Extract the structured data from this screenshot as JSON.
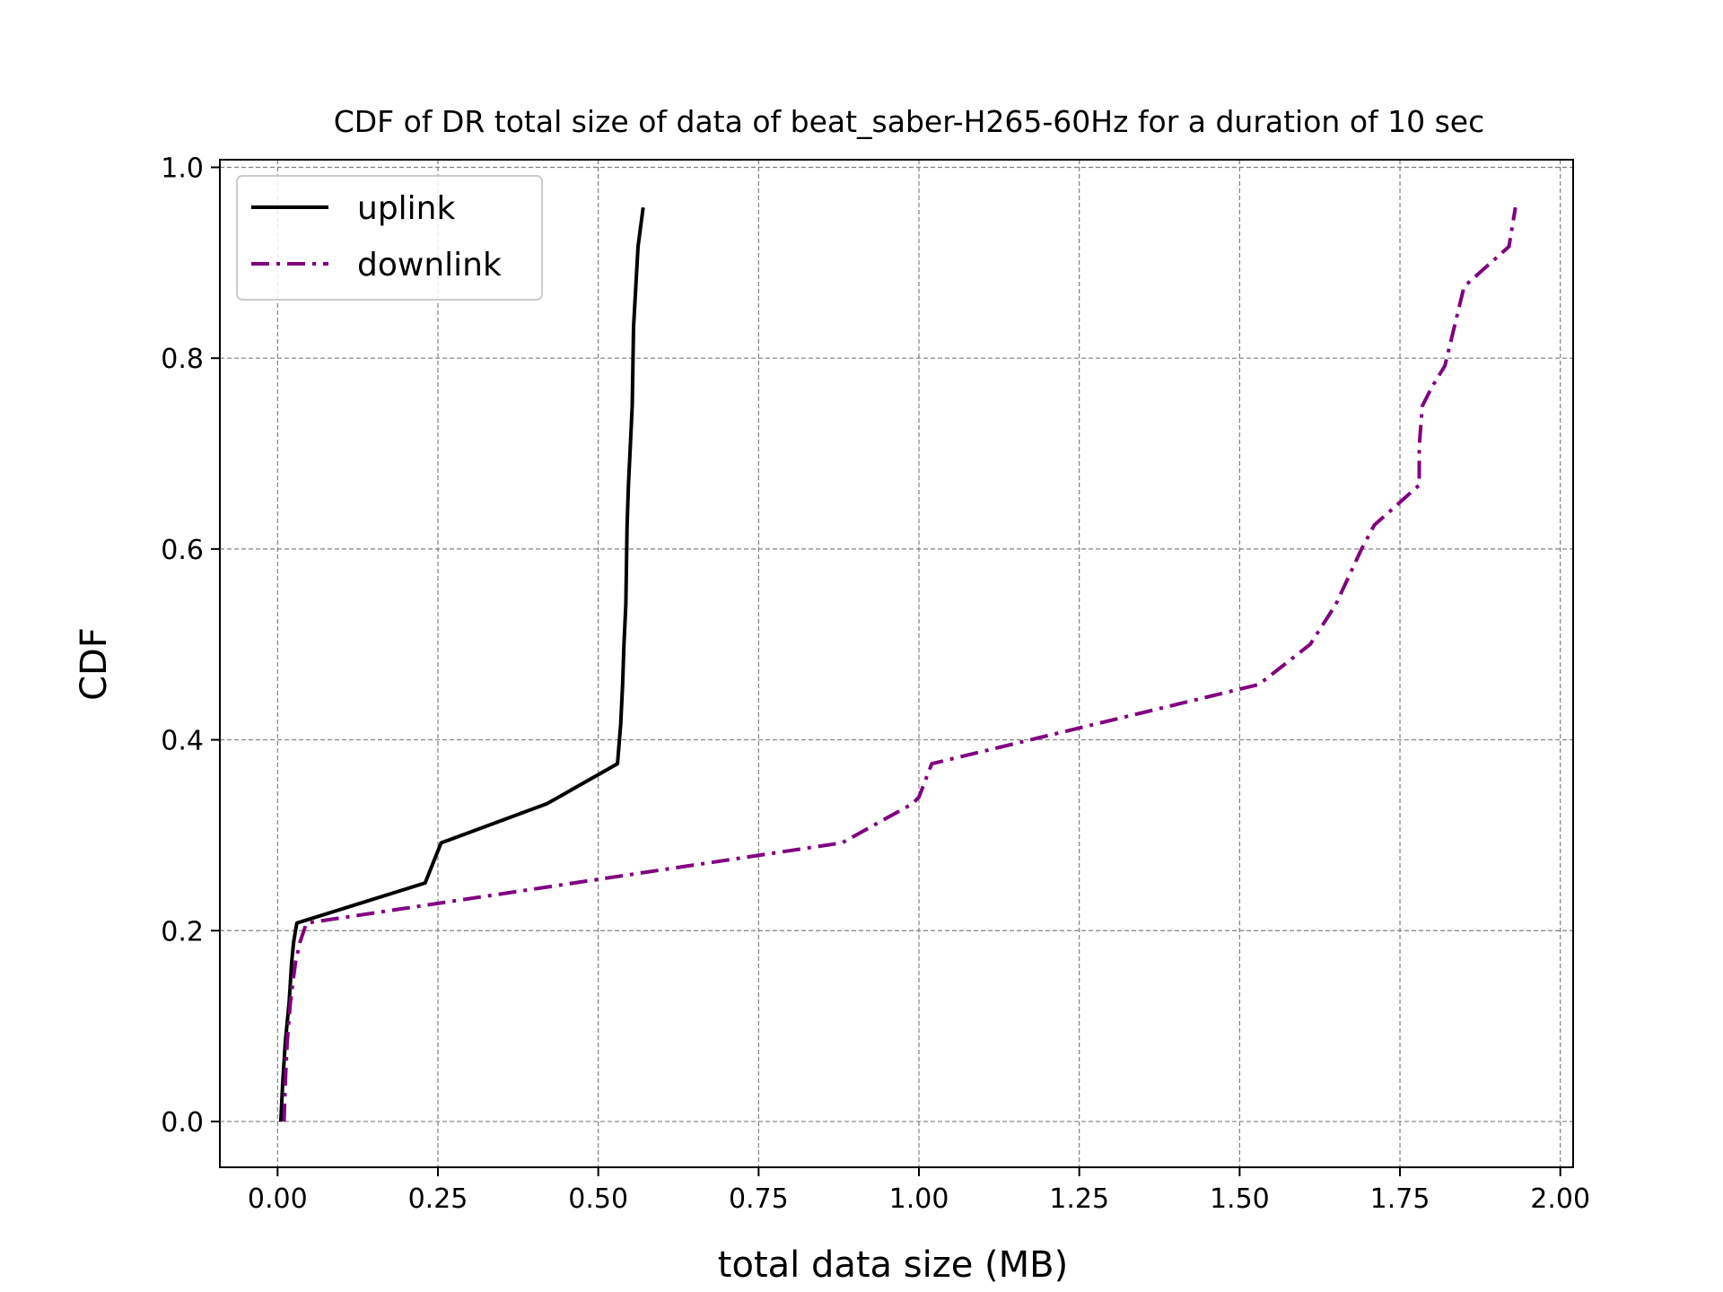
{
  "chart_data": {
    "type": "line",
    "title": "CDF of DR total size of data of beat_saber-H265-60Hz for a duration of 10 sec",
    "xlabel": "total data size (MB)",
    "ylabel": "CDF",
    "xlim": [
      -0.09,
      2.02
    ],
    "ylim": [
      -0.048,
      1.008
    ],
    "xticks": [
      0.0,
      0.25,
      0.5,
      0.75,
      1.0,
      1.25,
      1.5,
      1.75,
      2.0
    ],
    "xtick_labels": [
      "0.00",
      "0.25",
      "0.50",
      "0.75",
      "1.00",
      "1.25",
      "1.50",
      "1.75",
      "2.00"
    ],
    "yticks": [
      0.0,
      0.2,
      0.4,
      0.6,
      0.8,
      1.0
    ],
    "ytick_labels": [
      "0.0",
      "0.2",
      "0.4",
      "0.6",
      "0.8",
      "1.0"
    ],
    "grid": true,
    "legend_position": "top-left",
    "series": [
      {
        "name": "uplink",
        "color": "#000000",
        "style": "solid",
        "x": [
          0.005,
          0.008,
          0.012,
          0.018,
          0.022,
          0.025,
          0.028,
          0.03,
          0.23,
          0.255,
          0.42,
          0.53,
          0.535,
          0.538,
          0.54,
          0.543,
          0.545,
          0.547,
          0.55,
          0.553,
          0.555,
          0.562,
          0.57
        ],
        "y": [
          0.0,
          0.04,
          0.083,
          0.125,
          0.167,
          0.188,
          0.2,
          0.208,
          0.25,
          0.292,
          0.333,
          0.375,
          0.417,
          0.458,
          0.5,
          0.542,
          0.625,
          0.667,
          0.708,
          0.75,
          0.833,
          0.917,
          0.958
        ]
      },
      {
        "name": "downlink",
        "color": "#800080",
        "style": "dashdot",
        "x": [
          0.01,
          0.012,
          0.015,
          0.02,
          0.028,
          0.035,
          0.045,
          0.88,
          0.99,
          1.0,
          1.02,
          1.53,
          1.61,
          1.65,
          1.69,
          1.71,
          1.78,
          1.78,
          1.785,
          1.8,
          1.82,
          1.85,
          1.92,
          1.93
        ],
        "y": [
          0.0,
          0.04,
          0.083,
          0.125,
          0.167,
          0.188,
          0.208,
          0.292,
          0.333,
          0.34,
          0.375,
          0.458,
          0.5,
          0.542,
          0.6,
          0.625,
          0.667,
          0.708,
          0.75,
          0.77,
          0.792,
          0.875,
          0.917,
          0.958
        ]
      }
    ]
  }
}
